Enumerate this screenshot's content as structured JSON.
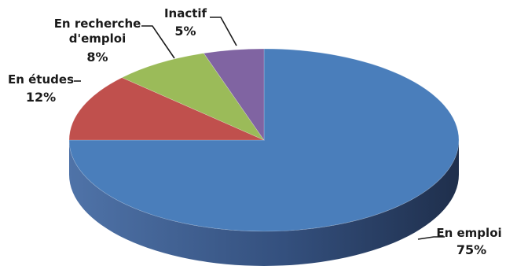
{
  "chart_data": {
    "type": "pie",
    "style": "3d",
    "title": "",
    "legend": "none",
    "slices": [
      {
        "label": "En emploi",
        "value": 75,
        "value_label": "75%",
        "color": "#4a7ebb",
        "side_dark": "#263a5e",
        "side_light": "#4f73a8"
      },
      {
        "label": "En études",
        "value": 12,
        "value_label": "12%",
        "color": "#c0504d",
        "side_dark": "#7a2e2c",
        "side_light": "#a54543"
      },
      {
        "label": "En recherche d'emploi",
        "label_lines": [
          "En recherche",
          "d'emploi"
        ],
        "value": 8,
        "value_label": "8%",
        "color": "#9bbb59",
        "side_dark": "#5d7433",
        "side_light": "#86a34c"
      },
      {
        "label": "Inactif",
        "value": 5,
        "value_label": "5%",
        "color": "#8064a2",
        "side_dark": "#4c3a63",
        "side_light": "#6e558c"
      }
    ]
  }
}
